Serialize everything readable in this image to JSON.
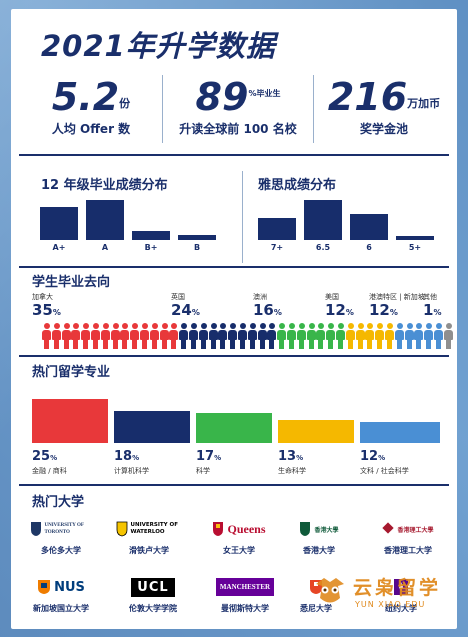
{
  "title": "2021年升学数据",
  "stats": [
    {
      "value": "5.2",
      "unit": "份",
      "unit_extra": "",
      "label": "人均 Offer 数"
    },
    {
      "value": "89",
      "unit": "%",
      "unit_extra": "毕业生",
      "label": "升读全球前 100 名校"
    },
    {
      "value": "216",
      "unit": "万加币",
      "unit_extra": "",
      "label": "奖学金池"
    }
  ],
  "grade_chart": {
    "title": "12 年级毕业成绩分布",
    "chart_data": {
      "type": "bar",
      "categories": [
        "A+",
        "A",
        "B+",
        "B"
      ],
      "values": [
        33,
        40,
        9,
        5
      ],
      "title": "12 年级毕业成绩分布"
    }
  },
  "ielts_chart": {
    "title": "雅思成绩分布",
    "chart_data": {
      "type": "bar",
      "categories": [
        "7+",
        "6.5",
        "6",
        "5+"
      ],
      "values": [
        22,
        40,
        26,
        4
      ],
      "title": "雅思成绩分布"
    }
  },
  "destinations": {
    "title": "学生毕业去向",
    "items": [
      {
        "name": "加拿大",
        "pct": "35",
        "color": "#e8383a"
      },
      {
        "name": "英国",
        "pct": "24",
        "color": "#172d6b"
      },
      {
        "name": "澳洲",
        "pct": "16",
        "color": "#39b54a"
      },
      {
        "name": "美国",
        "pct": "12",
        "color": "#f5b800"
      },
      {
        "name": "港澳特区 | 新加坡",
        "pct": "12",
        "color": "#4a8fd4"
      },
      {
        "name": "其他",
        "pct": "1",
        "color": "#8f8f8f"
      }
    ],
    "unit": "%"
  },
  "majors": {
    "title": "热门留学专业",
    "chart_data": {
      "type": "bar",
      "categories": [
        "金融 / 商科",
        "计算机科学",
        "科学",
        "生命科学",
        "文科 / 社会科学"
      ],
      "values": [
        25,
        18,
        17,
        13,
        12
      ],
      "colors": [
        "#e8383a",
        "#172d6b",
        "#39b54a",
        "#f5b800",
        "#4a8fd4"
      ]
    },
    "unit": "%"
  },
  "universities": {
    "title": "热门大学",
    "items": [
      {
        "name": "多伦多大学",
        "logo": "UNIVERSITY OF TORONTO",
        "color": "#1e3765"
      },
      {
        "name": "滑铁卢大学",
        "logo": "UNIVERSITY OF WATERLOO",
        "color": "#000000"
      },
      {
        "name": "女王大学",
        "logo": "Queens",
        "color": "#b90e31"
      },
      {
        "name": "香港大学",
        "logo": "香港大學",
        "color": "#0f5a3a"
      },
      {
        "name": "香港理工大学",
        "logo": "香港理工大學",
        "color": "#a6192e"
      },
      {
        "name": "新加坡国立大学",
        "logo": "NUS",
        "color": "#003d7c"
      },
      {
        "name": "伦敦大学学院",
        "logo": "UCL",
        "color": "#000000"
      },
      {
        "name": "曼彻斯特大学",
        "logo": "MANCHESTER",
        "color": "#660099"
      },
      {
        "name": "悉尼大学",
        "logo": "",
        "color": "#e64626"
      },
      {
        "name": "纽约大学",
        "logo": "",
        "color": "#57068c"
      }
    ]
  },
  "watermark": {
    "cn": "云枭留学",
    "en": "YUN XIAO EDU"
  }
}
